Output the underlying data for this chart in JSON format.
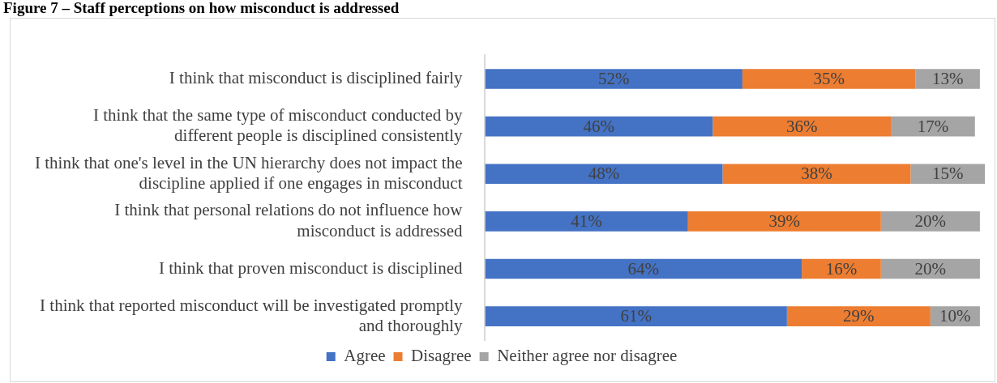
{
  "chart_data": {
    "type": "bar",
    "orientation": "horizontal",
    "stacked": true,
    "title": "Figure 7 – Staff perceptions on how misconduct is addressed",
    "categories": [
      "I think that misconduct is disciplined fairly",
      "I think that the same type of misconduct conducted by different people is disciplined consistently",
      "I think that one's level in the UN hierarchy does not impact the discipline applied if one engages in misconduct",
      "I think that personal relations do not influence how misconduct is addressed",
      "I think that proven misconduct is disciplined",
      "I think that reported misconduct will be investigated promptly and thoroughly"
    ],
    "series": [
      {
        "name": "Agree",
        "color": "#4472c4",
        "values": [
          52,
          46,
          48,
          41,
          64,
          61
        ],
        "value_labels": [
          "52%",
          "46%",
          "48%",
          "41%",
          "64%",
          "61%"
        ]
      },
      {
        "name": "Disagree",
        "color": "#ed7d31",
        "values": [
          35,
          36,
          38,
          39,
          16,
          29
        ],
        "value_labels": [
          "35%",
          "36%",
          "38%",
          "39%",
          "16%",
          "29%"
        ]
      },
      {
        "name": "Neither agree nor disagree",
        "color": "#a5a5a5",
        "values": [
          13,
          17,
          15,
          20,
          20,
          10
        ],
        "value_labels": [
          "13%",
          "17%",
          "15%",
          "20%",
          "20%",
          "10%"
        ]
      }
    ],
    "legend": "bottom",
    "tick_labels": "y"
  }
}
